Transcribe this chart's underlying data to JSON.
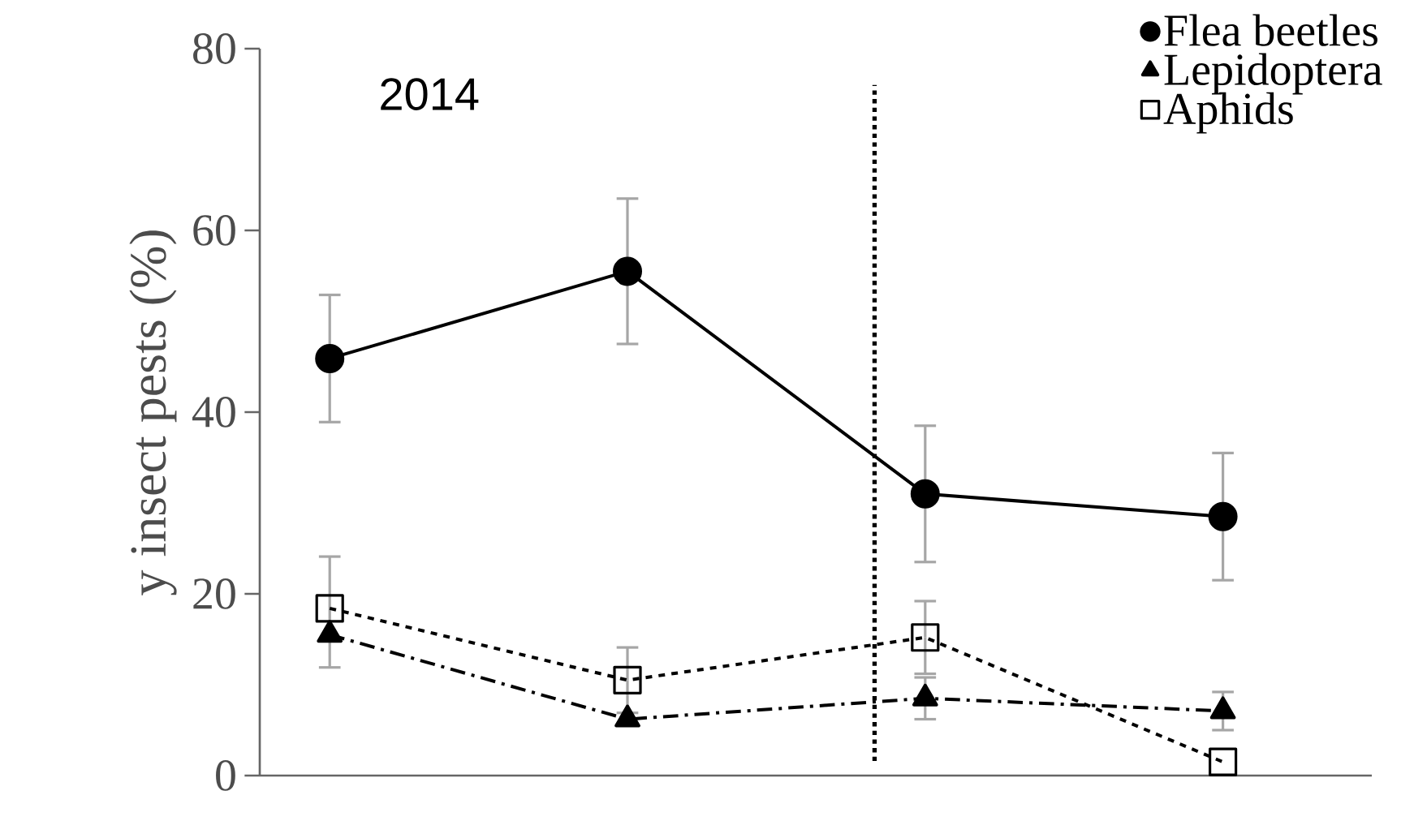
{
  "chart_data": {
    "type": "line",
    "title": "2014",
    "ylabel": "y insect pests (%)",
    "categories": [
      null,
      null,
      null,
      null
    ],
    "ylim": [
      0,
      80
    ],
    "yticks": [
      0,
      20,
      40,
      60,
      80
    ],
    "tick_labels": "y",
    "legend": "top right",
    "series": [
      {
        "name": "Flea beetles",
        "color": "#000000",
        "marker": "circle",
        "line_style": "solid",
        "values": [
          45.9,
          55.5,
          31.0,
          28.5
        ],
        "errors": [
          7,
          8,
          7.5,
          7
        ]
      },
      {
        "name": "Lepidoptera",
        "color": "#000000",
        "marker": "triangle",
        "line_style": "dashdot",
        "values": [
          15.5,
          6.2,
          8.5,
          7.1
        ],
        "errors": [
          null,
          null,
          2.3,
          2.1
        ]
      },
      {
        "name": "Aphids",
        "color": "#000000",
        "marker": "square",
        "line_style": "dashed",
        "values": [
          18.4,
          10.5,
          15.2,
          1.5
        ],
        "errors": [
          [
            11.9,
            24.1
          ],
          3.6,
          4,
          null
        ]
      }
    ]
  }
}
